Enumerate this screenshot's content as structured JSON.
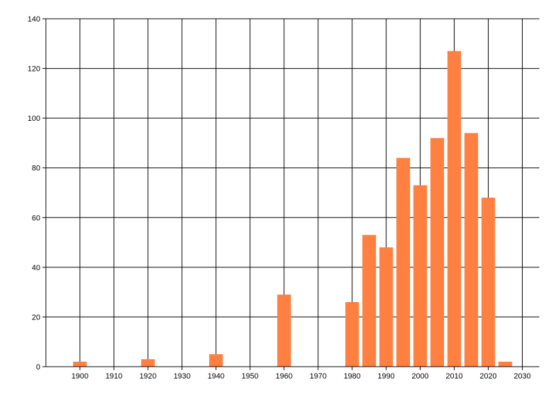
{
  "chart_data": {
    "type": "bar",
    "x": [
      1900,
      1920,
      1940,
      1960,
      1980,
      1985,
      1990,
      1995,
      2000,
      2005,
      2010,
      2015,
      2020,
      2025
    ],
    "values": [
      2,
      3,
      5,
      29,
      26,
      53,
      48,
      84,
      73,
      92,
      127,
      94,
      68,
      2
    ],
    "color": "#ff8040",
    "xlim": [
      1890,
      2035
    ],
    "xticks": [
      1900,
      1910,
      1920,
      1930,
      1940,
      1950,
      1960,
      1970,
      1980,
      1990,
      2000,
      2010,
      2020,
      2030
    ],
    "ylim": [
      0,
      140
    ],
    "yticks": [
      0,
      20,
      40,
      60,
      80,
      100,
      120,
      140
    ],
    "grid": true
  }
}
